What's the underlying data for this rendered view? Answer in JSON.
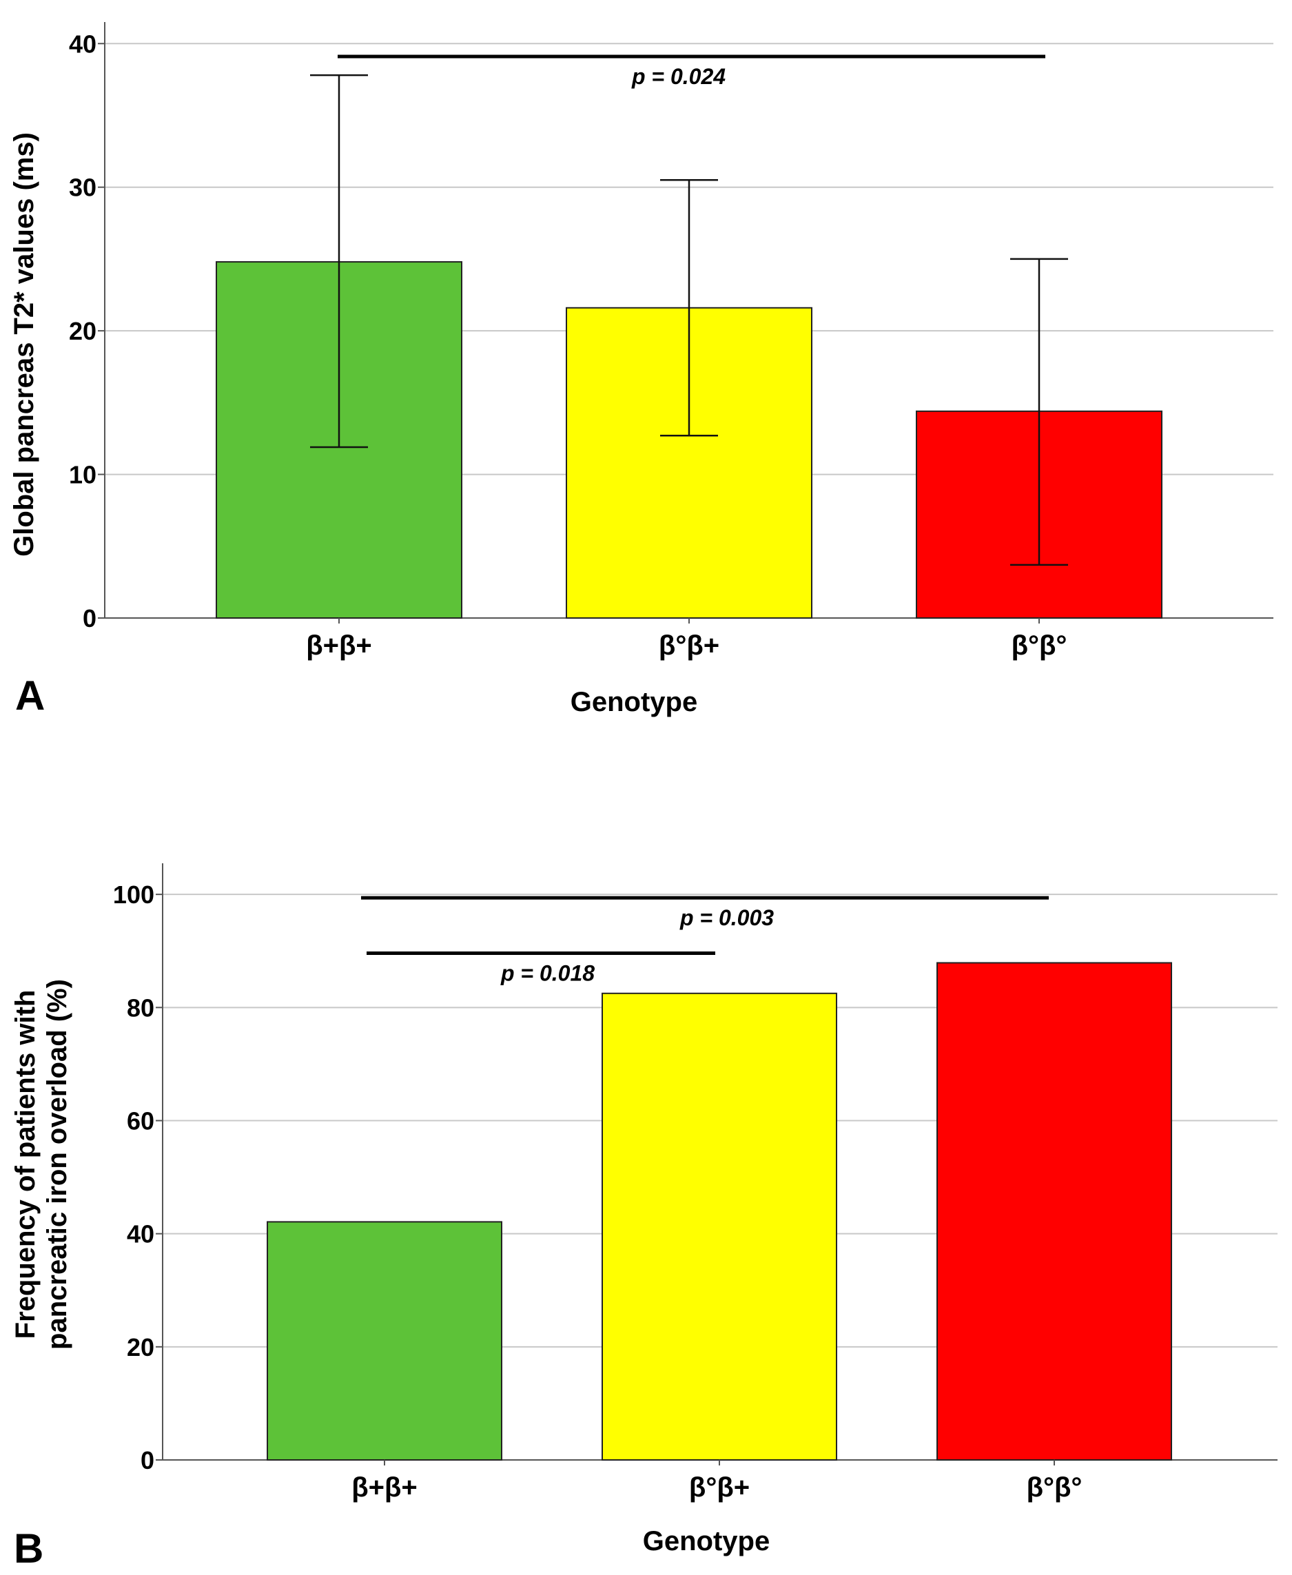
{
  "chart_data": [
    {
      "type": "bar",
      "panel_label": "A",
      "categories": [
        "β+β+",
        "β°β+",
        "β°β°"
      ],
      "values": [
        24.8,
        21.6,
        14.4
      ],
      "error_low": [
        11.9,
        12.7,
        3.7
      ],
      "error_high": [
        37.8,
        30.5,
        25.0
      ],
      "colors": [
        "#5dc238",
        "#ffff00",
        "#ff0000"
      ],
      "title": "",
      "xlabel": "Genotype",
      "ylabel": "Global pancreas T2* values (ms)",
      "ylim": [
        0,
        41.5
      ],
      "yticks": [
        0,
        10,
        20,
        30,
        40
      ],
      "grid": true,
      "annotations": [
        {
          "from": 0,
          "to": 2,
          "y": 39.1,
          "label": "p = 0.024"
        }
      ]
    },
    {
      "type": "bar",
      "panel_label": "B",
      "categories": [
        "β+β+",
        "β°β+",
        "β°β°"
      ],
      "values": [
        42.1,
        82.5,
        87.9
      ],
      "colors": [
        "#5dc238",
        "#ffff00",
        "#ff0000"
      ],
      "title": "",
      "xlabel": "Genotype",
      "ylabel_lines": [
        "Frequency of patients with",
        "pancreatic iron overload (%)"
      ],
      "ylim": [
        0,
        105.5
      ],
      "yticks": [
        0,
        20,
        40,
        60,
        80,
        100
      ],
      "grid": true,
      "annotations": [
        {
          "from": 0,
          "to": 2,
          "y": 99.4,
          "label": "p = 0.003"
        },
        {
          "from": 0,
          "to": 1,
          "y": 89.6,
          "label": "p = 0.018"
        }
      ]
    }
  ]
}
